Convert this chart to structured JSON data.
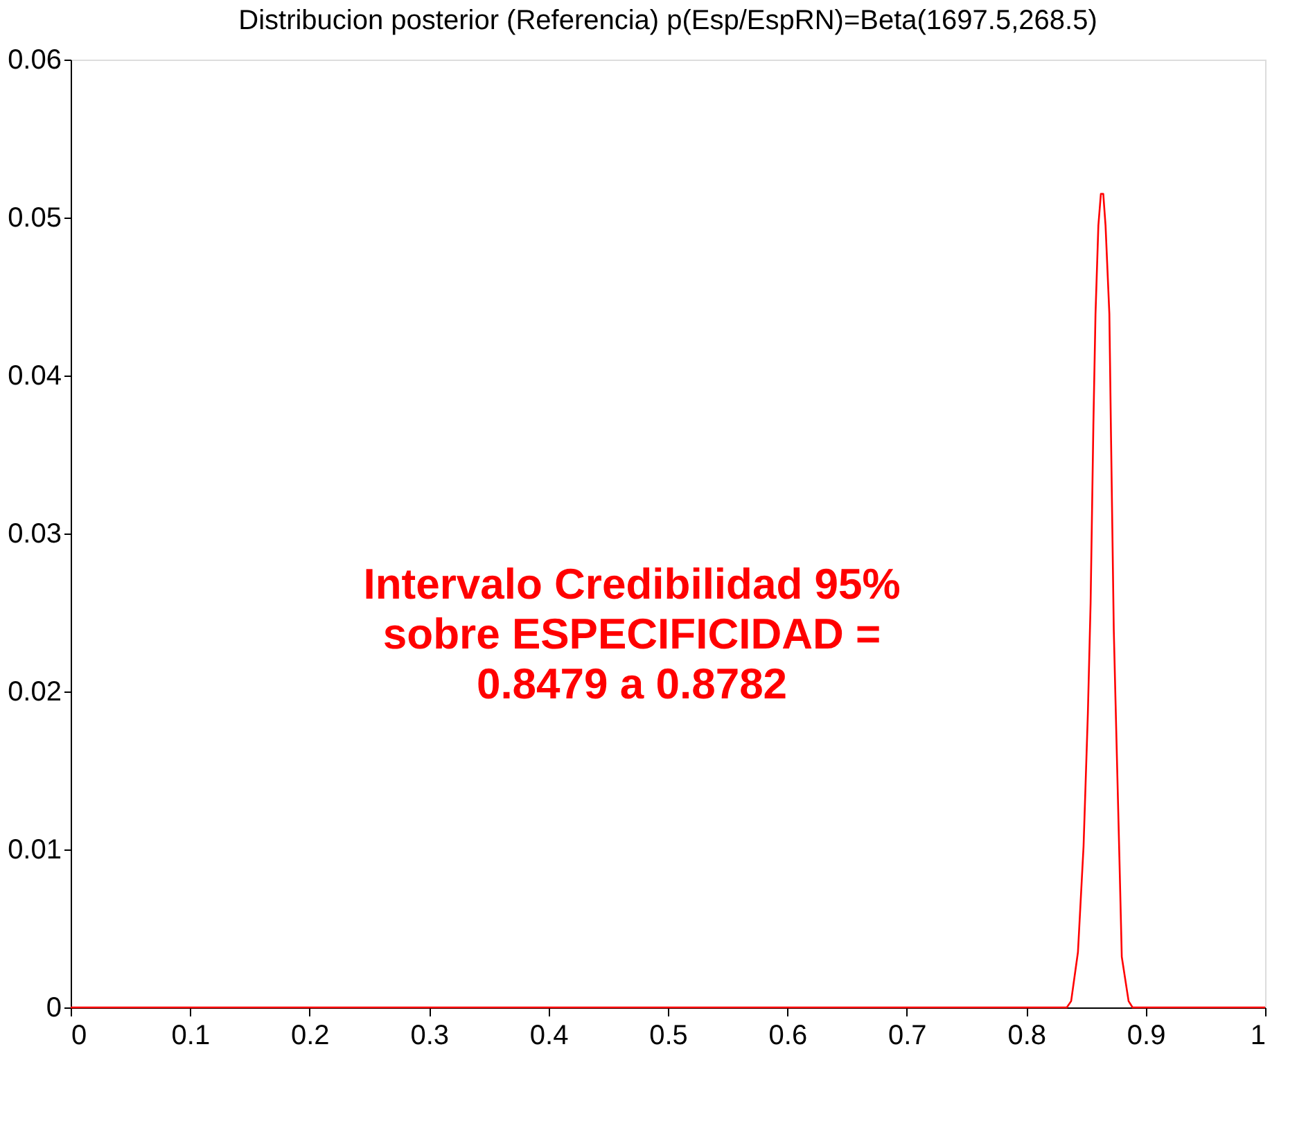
{
  "chart_data": {
    "type": "line",
    "title": "Distribucion posterior (Referencia) p(Esp/EspRN)=Beta(1697.5,268.5)",
    "x": [
      0,
      0.834,
      0.8376,
      0.8433,
      0.848,
      0.8516,
      0.8539,
      0.8562,
      0.858,
      0.8604,
      0.8625,
      0.8645,
      0.8664,
      0.8696,
      0.871,
      0.8733,
      0.8756,
      0.878,
      0.88,
      0.8857,
      0.889,
      1
    ],
    "series": [
      {
        "color": "#ff0000",
        "values": [
          0,
          0,
          0.0004,
          0.0035,
          0.0102,
          0.0186,
          0.0256,
          0.0368,
          0.0439,
          0.0495,
          0.0515,
          0.0515,
          0.0495,
          0.0439,
          0.0361,
          0.0239,
          0.0168,
          0.0095,
          0.0032,
          0.0004,
          0,
          0
        ]
      }
    ],
    "xlim": [
      0,
      1
    ],
    "xticks": [
      0,
      0.1,
      0.2,
      0.3,
      0.4,
      0.5,
      0.6,
      0.7,
      0.8,
      0.9,
      1
    ],
    "ylim": [
      0,
      0.06
    ],
    "yticks": [
      0,
      0.01,
      0.02,
      0.03,
      0.04,
      0.05,
      0.06
    ],
    "grid": false,
    "marker": "none",
    "line_style": "solid",
    "annotations": [
      "Intervalo Credibilidad 95%\nsobre ESPECIFICIDAD =\n0.8479 a 0.8782"
    ]
  }
}
